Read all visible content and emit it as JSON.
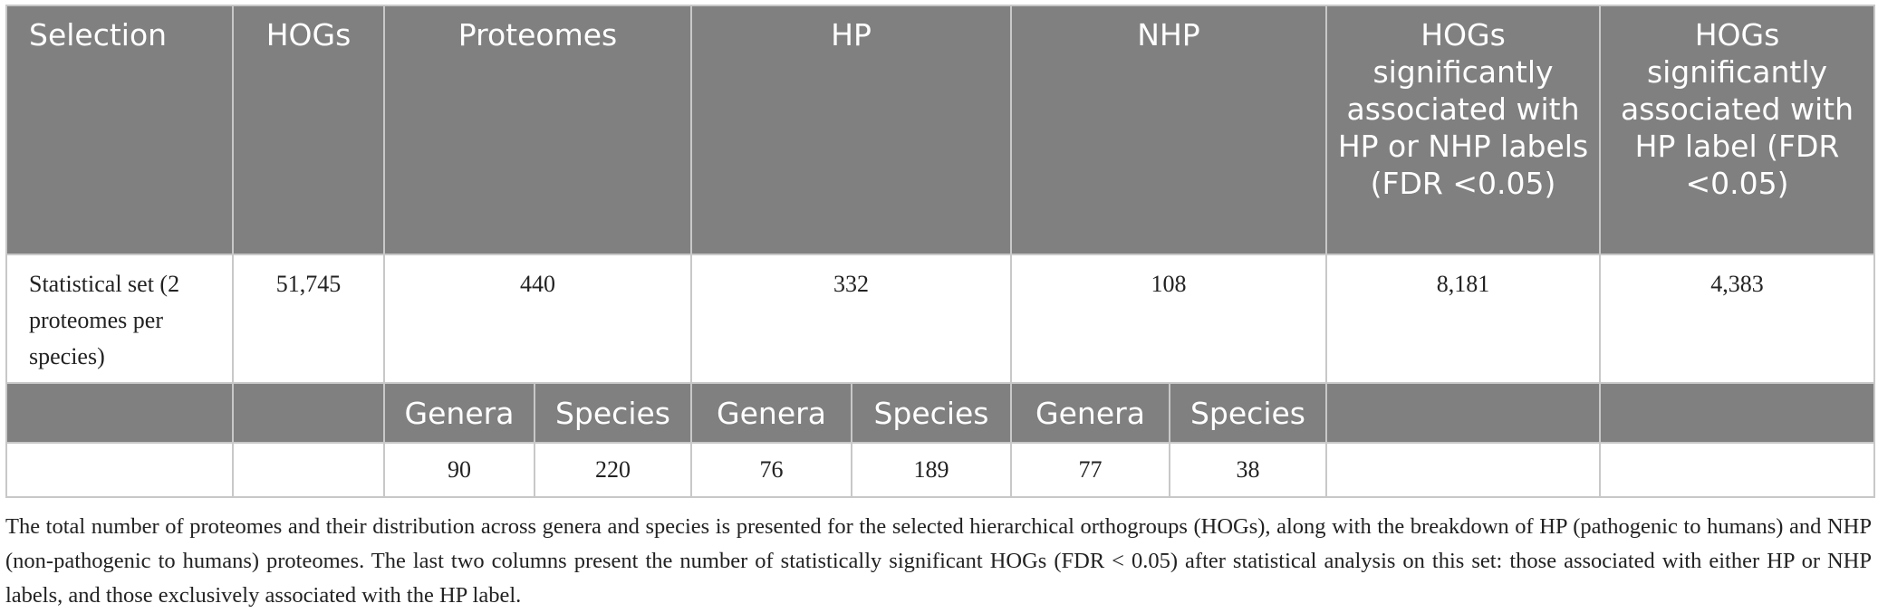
{
  "table": {
    "headers": {
      "selection": "Selection",
      "hogs": "HOGs",
      "proteomes": "Proteomes",
      "hp": "HP",
      "nhp": "NHP",
      "hogs_hp_or_nhp": "HOGs significantly associated with HP or NHP labels (FDR <0.05)",
      "hogs_hp": "HOGs significantly associated with HP label (FDR <0.05)"
    },
    "row": {
      "selection": "Statistical set (2 proteomes per species)",
      "hogs": "51,745",
      "proteomes": "440",
      "hp": "332",
      "nhp": "108",
      "hogs_hp_or_nhp": "8,181",
      "hogs_hp": "4,383"
    },
    "subheaders": {
      "proteomes_genera": "Genera",
      "proteomes_species": "Species",
      "hp_genera": "Genera",
      "hp_species": "Species",
      "nhp_genera": "Genera",
      "nhp_species": "Species"
    },
    "subvalues": {
      "proteomes_genera": "90",
      "proteomes_species": "220",
      "hp_genera": "76",
      "hp_species": "189",
      "nhp_genera": "77",
      "nhp_species": "38"
    }
  },
  "caption": "The total number of proteomes and their distribution across genera and species is presented for the selected hierarchical orthogroups (HOGs), along with the breakdown of HP (pathogenic to humans) and NHP (non-pathogenic to humans) proteomes. The last two columns present the number of statistically significant HOGs (FDR < 0.05) after statistical analysis on this set: those associated with either HP or NHP labels, and those exclusively associated with the HP label."
}
